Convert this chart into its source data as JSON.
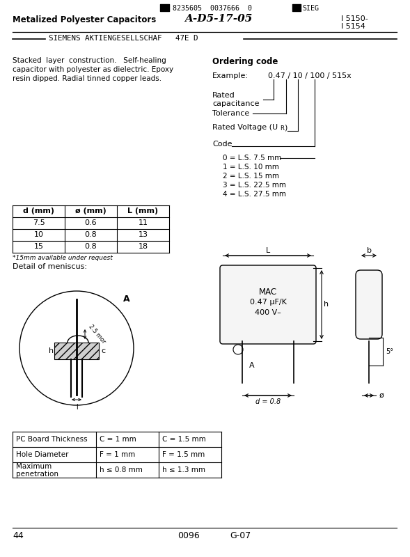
{
  "bg_color": "#ffffff",
  "page_width": 5.89,
  "page_height": 8.0,
  "header_barcode": "8235605  0037666  0  ■SIEG",
  "title_left": "Metalized Polyester Capacitors",
  "title_center": "A-D5-17-05",
  "title_right1": "I 5150-",
  "title_right2": "I 5154",
  "subtitle": "SIEMENS AKTIENGESELLSCHAF   47E D",
  "description_lines": [
    "Stacked  layer  construction.   Self-healing",
    "capacitor with polyester as dielectric. Epoxy",
    "resin dipped. Radial tinned copper leads."
  ],
  "ordering_code_title": "Ordering code",
  "example_label": "Example:",
  "example_value": "0.47 / 10 / 100 / 515x",
  "ordering_labels": [
    "Rated\ncapacitance",
    "Tolerance",
    "Rated Voltage (U_R)",
    "Code"
  ],
  "code_entries": [
    "0 = L.S. 7.5 mm",
    "1 = L.S. 10 mm",
    "2 = L.S. 15 mm",
    "3 = L.S. 22.5 mm",
    "4 = L.S. 27.5 mm"
  ],
  "table_headers": [
    "d (mm)",
    "ø (mm)",
    "L (mm)"
  ],
  "table_rows": [
    [
      "7.5",
      "0.6",
      "11"
    ],
    [
      "10",
      "0.8",
      "13"
    ],
    [
      "15",
      "0.8",
      "18"
    ]
  ],
  "table_note": "*15mm available under request",
  "meniscus_title": "Detail of meniscus:",
  "bottom_table_rows": [
    [
      "PC Board Thickness",
      "C = 1 mm",
      "C = 1.5 mm"
    ],
    [
      "Hole Diameter",
      "F = 1 mm",
      "F = 1.5 mm"
    ],
    [
      "Maximum\npenetration",
      "h ≤ 0.8 mm",
      "h ≤ 1.3 mm"
    ]
  ],
  "footer_page": "44",
  "footer_code1": "0096",
  "footer_code2": "G-07",
  "line_color": "#000000",
  "text_color": "#000000"
}
